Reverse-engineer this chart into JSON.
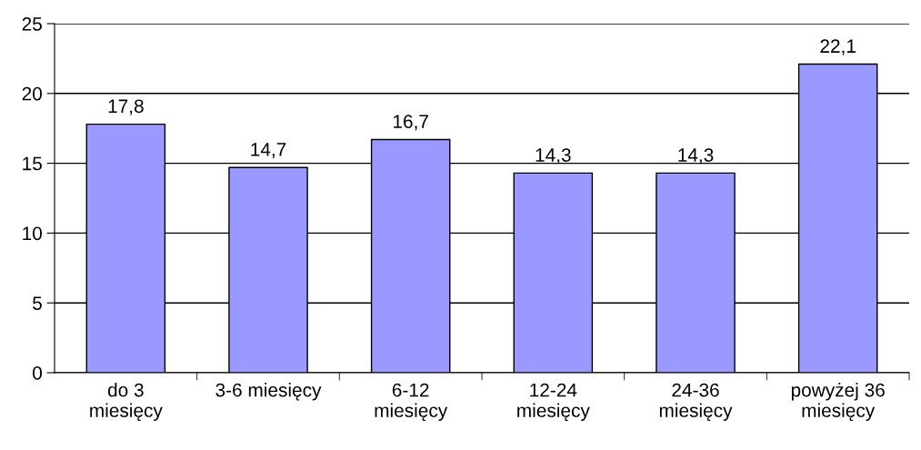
{
  "chart_data": {
    "type": "bar",
    "categories": [
      "do 3\nmiesięcy",
      "3-6 miesięcy",
      "6-12\nmiesięcy",
      "12-24\nmiesięcy",
      "24-36\nmiesięcy",
      "powyżej 36\nmiesięcy"
    ],
    "values": [
      17.8,
      14.7,
      16.7,
      14.3,
      14.3,
      22.1
    ],
    "value_labels": [
      "17,8",
      "14,7",
      "16,7",
      "14,3",
      "14,3",
      "22,1"
    ],
    "color": "#9999ff",
    "ylim": [
      0,
      25
    ],
    "yticks": [
      0,
      5,
      10,
      15,
      20,
      25
    ],
    "grid": "y",
    "legend": false
  }
}
